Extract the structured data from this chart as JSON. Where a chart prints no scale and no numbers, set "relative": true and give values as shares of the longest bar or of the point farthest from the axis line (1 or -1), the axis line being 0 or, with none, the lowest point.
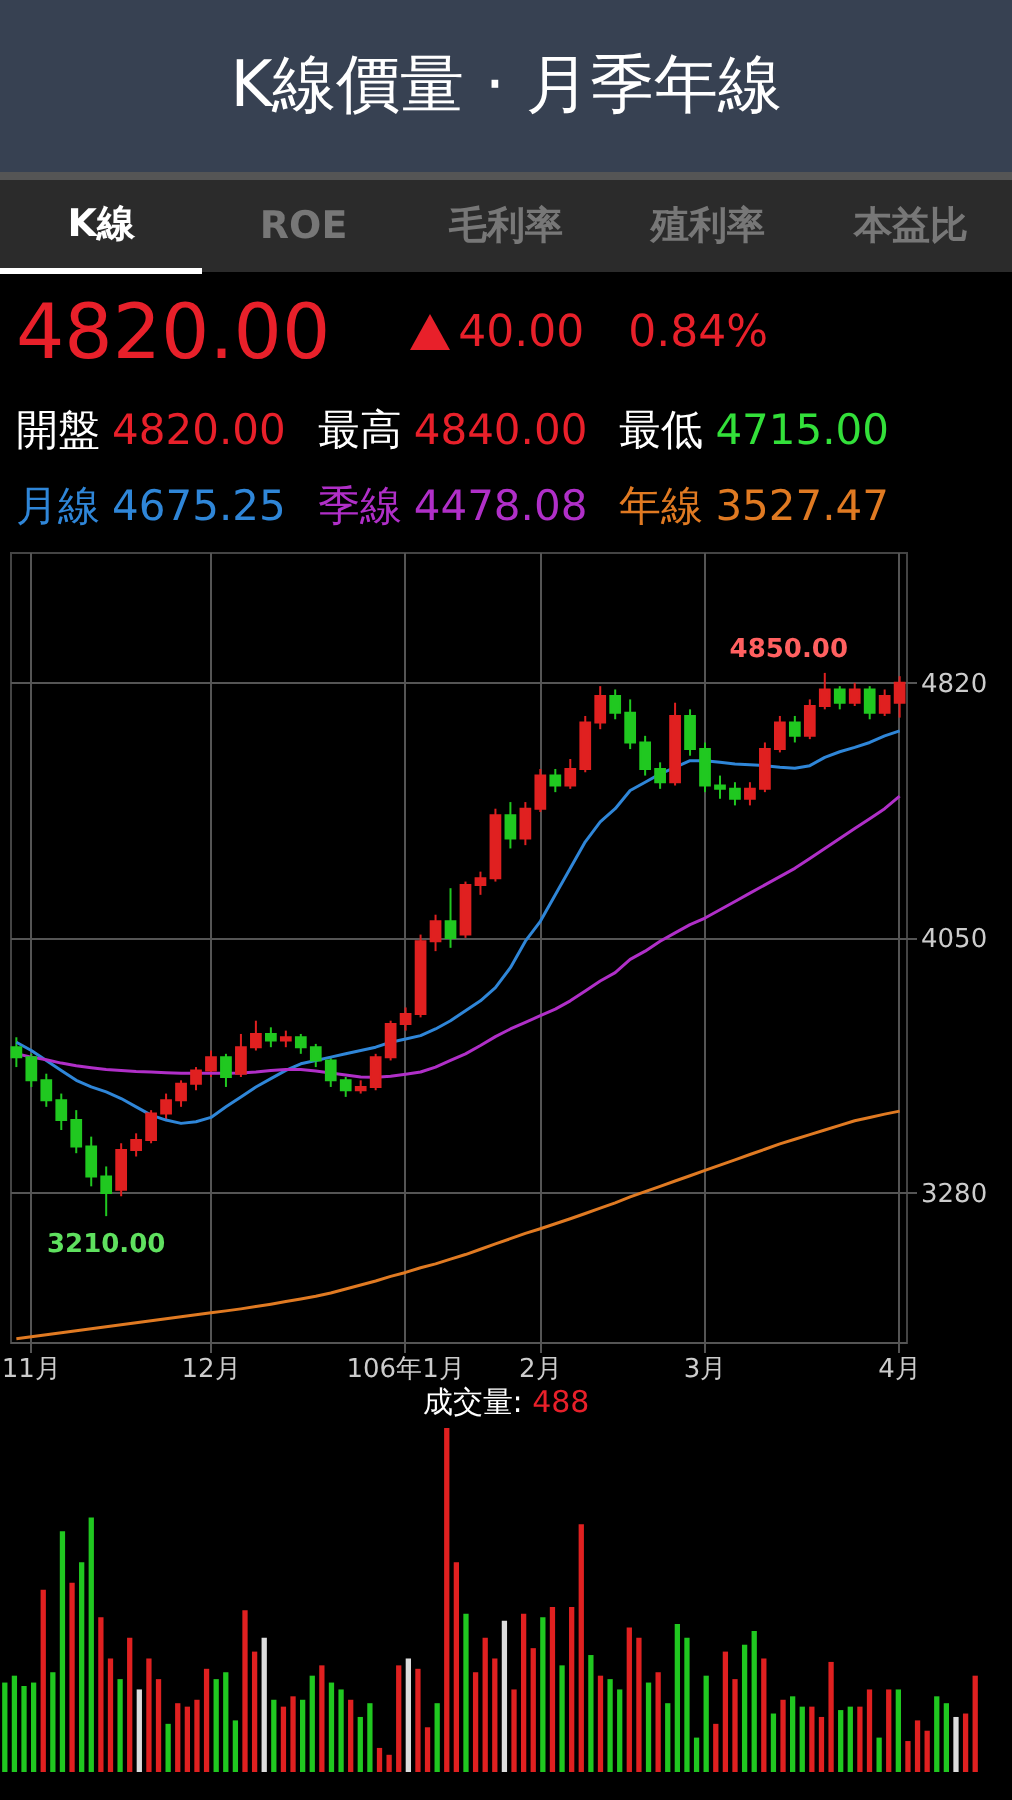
{
  "chart_data": [
    {
      "type": "candlestick",
      "title": "K線價量 · 月季年線",
      "annotations": [
        "K線",
        "ROE",
        "毛利率",
        "殖利率",
        "本益比",
        "4820.00",
        "40.00",
        "0.84%",
        "開盤",
        "4820.00",
        "最高",
        "4840.00",
        "最低",
        "4715.00",
        "4675.25",
        "4478.08",
        "3527.47",
        "4850.00",
        "3210.00"
      ],
      "categories": [
        null,
        "11月",
        null,
        null,
        null,
        null,
        null,
        null,
        null,
        null,
        null,
        null,
        null,
        "12月",
        null,
        null,
        null,
        null,
        null,
        null,
        null,
        null,
        null,
        null,
        null,
        null,
        "106年1月",
        null,
        null,
        null,
        null,
        null,
        null,
        null,
        null,
        "2月",
        null,
        null,
        null,
        null,
        null,
        null,
        null,
        null,
        null,
        null,
        "3月",
        null,
        null,
        null,
        null,
        null,
        null,
        null,
        null,
        null,
        null,
        null,
        null,
        "4月"
      ],
      "ohlc": [
        [
          3720,
          3750,
          3660,
          3690
        ],
        [
          3690,
          3700,
          3600,
          3620
        ],
        [
          3620,
          3640,
          3540,
          3560
        ],
        [
          3560,
          3580,
          3470,
          3500
        ],
        [
          3500,
          3530,
          3400,
          3420
        ],
        [
          3420,
          3450,
          3300,
          3330
        ],
        [
          3330,
          3360,
          3210,
          3280
        ],
        [
          3290,
          3430,
          3270,
          3410
        ],
        [
          3410,
          3460,
          3390,
          3440
        ],
        [
          3440,
          3530,
          3430,
          3520
        ],
        [
          3520,
          3580,
          3500,
          3560
        ],
        [
          3560,
          3620,
          3540,
          3610
        ],
        [
          3610,
          3660,
          3590,
          3650
        ],
        [
          3650,
          3710,
          3630,
          3690
        ],
        [
          3690,
          3700,
          3600,
          3630
        ],
        [
          3640,
          3760,
          3630,
          3720
        ],
        [
          3720,
          3800,
          3710,
          3760
        ],
        [
          3760,
          3780,
          3720,
          3740
        ],
        [
          3740,
          3770,
          3720,
          3750
        ],
        [
          3750,
          3760,
          3700,
          3720
        ],
        [
          3720,
          3730,
          3660,
          3680
        ],
        [
          3680,
          3690,
          3600,
          3620
        ],
        [
          3620,
          3630,
          3570,
          3590
        ],
        [
          3590,
          3620,
          3580,
          3600
        ],
        [
          3600,
          3700,
          3590,
          3690
        ],
        [
          3690,
          3800,
          3680,
          3790
        ],
        [
          3790,
          3840,
          3770,
          3820
        ],
        [
          3820,
          4060,
          3810,
          4040
        ],
        [
          4040,
          4120,
          4010,
          4100
        ],
        [
          4100,
          4200,
          4020,
          4050
        ],
        [
          4060,
          4220,
          4050,
          4210
        ],
        [
          4210,
          4250,
          4180,
          4230
        ],
        [
          4230,
          4440,
          4220,
          4420
        ],
        [
          4420,
          4460,
          4320,
          4350
        ],
        [
          4350,
          4460,
          4330,
          4440
        ],
        [
          4440,
          4560,
          4430,
          4540
        ],
        [
          4540,
          4560,
          4490,
          4510
        ],
        [
          4510,
          4590,
          4500,
          4560
        ],
        [
          4560,
          4720,
          4550,
          4700
        ],
        [
          4700,
          4810,
          4680,
          4780
        ],
        [
          4780,
          4800,
          4710,
          4730
        ],
        [
          4730,
          4770,
          4620,
          4640
        ],
        [
          4640,
          4660,
          4540,
          4560
        ],
        [
          4560,
          4580,
          4500,
          4520
        ],
        [
          4520,
          4760,
          4510,
          4720
        ],
        [
          4720,
          4740,
          4600,
          4620
        ],
        [
          4620,
          4640,
          4490,
          4510
        ],
        [
          4510,
          4540,
          4470,
          4500
        ],
        [
          4500,
          4520,
          4450,
          4470
        ],
        [
          4470,
          4520,
          4450,
          4500
        ],
        [
          4500,
          4640,
          4490,
          4620
        ],
        [
          4620,
          4720,
          4610,
          4700
        ],
        [
          4700,
          4720,
          4640,
          4660
        ],
        [
          4660,
          4770,
          4650,
          4750
        ],
        [
          4750,
          4850,
          4740,
          4800
        ],
        [
          4800,
          4810,
          4740,
          4760
        ],
        [
          4760,
          4820,
          4750,
          4800
        ],
        [
          4800,
          4810,
          4710,
          4730
        ],
        [
          4730,
          4800,
          4720,
          4780
        ],
        [
          4760,
          4840,
          4715,
          4820
        ]
      ],
      "colors": [
        "#20c820",
        "#20c820",
        "#20c820",
        "#20c820",
        "#20c820",
        "#20c820",
        "#20c820",
        "#e02020",
        "#e02020",
        "#e02020",
        "#e02020",
        "#e02020",
        "#e02020",
        "#e02020",
        "#20c820",
        "#e02020",
        "#e02020",
        "#20c820",
        "#e02020",
        "#20c820",
        "#20c820",
        "#20c820",
        "#20c820",
        "#e02020",
        "#e02020",
        "#e02020",
        "#e02020",
        "#e02020",
        "#e02020",
        "#20c820",
        "#e02020",
        "#e02020",
        "#e02020",
        "#20c820",
        "#e02020",
        "#e02020",
        "#20c820",
        "#e02020",
        "#e02020",
        "#e02020",
        "#20c820",
        "#20c820",
        "#20c820",
        "#20c820",
        "#e02020",
        "#20c820",
        "#20c820",
        "#20c820",
        "#20c820",
        "#e02020",
        "#e02020",
        "#e02020",
        "#20c820",
        "#e02020",
        "#e02020",
        "#20c820",
        "#e02020",
        "#20c820",
        "#e02020",
        "#e02020"
      ],
      "series": [
        {
          "type": "line",
          "name": "月線",
          "color": "#2f86d8",
          "values": [
            3735,
            3710,
            3680,
            3650,
            3620,
            3600,
            3585,
            3565,
            3540,
            3515,
            3500,
            3490,
            3495,
            3508,
            3540,
            3570,
            3600,
            3625,
            3650,
            3670,
            3680,
            3690,
            3700,
            3710,
            3720,
            3735,
            3745,
            3755,
            3775,
            3800,
            3830,
            3860,
            3900,
            3960,
            4040,
            4100,
            4180,
            4260,
            4340,
            4400,
            4440,
            4495,
            4520,
            4545,
            4565,
            4585,
            4585,
            4580,
            4575,
            4573,
            4570,
            4565,
            4562,
            4570,
            4595,
            4612,
            4625,
            4640,
            4660,
            4675
          ]
        },
        {
          "type": "line",
          "name": "季線",
          "color": "#b02fc8",
          "values": [
            3700,
            3690,
            3682,
            3672,
            3664,
            3658,
            3653,
            3650,
            3647,
            3645,
            3643,
            3641,
            3641,
            3641,
            3641,
            3642,
            3645,
            3650,
            3653,
            3653,
            3648,
            3642,
            3636,
            3630,
            3629,
            3632,
            3638,
            3645,
            3660,
            3680,
            3700,
            3725,
            3752,
            3775,
            3795,
            3815,
            3835,
            3860,
            3890,
            3920,
            3945,
            3985,
            4010,
            4040,
            4065,
            4090,
            4110,
            4135,
            4160,
            4185,
            4210,
            4235,
            4260,
            4290,
            4320,
            4350,
            4380,
            4410,
            4440,
            4478
          ]
        },
        {
          "type": "line",
          "name": "年線",
          "color": "#e07a22",
          "values": [
            2840,
            2846,
            2852,
            2858,
            2864,
            2870,
            2876,
            2882,
            2888,
            2894,
            2900,
            2906,
            2912,
            2918,
            2924,
            2930,
            2937,
            2944,
            2952,
            2960,
            2968,
            2978,
            2990,
            3002,
            3014,
            3028,
            3040,
            3054,
            3066,
            3080,
            3094,
            3110,
            3126,
            3142,
            3158,
            3172,
            3187,
            3202,
            3218,
            3234,
            3250,
            3268,
            3284,
            3300,
            3316,
            3332,
            3348,
            3364,
            3380,
            3396,
            3412,
            3428,
            3442,
            3456,
            3470,
            3484,
            3498,
            3508,
            3518,
            3527
          ]
        }
      ],
      "ylim": [
        2830,
        5215
      ],
      "yticks": [
        3280,
        4050,
        4820
      ],
      "grid": true
    },
    {
      "type": "bar",
      "relative": true,
      "annotations": [
        "成交量:",
        "488"
      ],
      "categories": [
        null,
        null,
        null,
        null,
        null,
        null,
        null,
        null,
        null,
        null,
        null,
        null,
        null,
        null,
        null,
        null,
        null,
        null,
        null,
        null,
        null,
        null,
        null,
        null,
        null,
        null,
        null,
        null,
        null,
        null,
        null,
        null,
        null,
        null,
        null,
        null,
        null,
        null,
        null,
        null,
        null,
        null,
        null,
        null,
        null,
        null,
        null,
        null,
        null,
        null,
        null,
        null,
        null,
        null,
        null,
        null,
        null,
        null,
        null,
        null,
        null,
        null,
        null,
        null,
        null,
        null,
        null,
        null,
        null,
        null,
        null,
        null,
        null,
        null,
        null,
        null,
        null,
        null,
        null,
        null,
        null,
        null,
        null,
        null,
        null,
        null,
        null,
        null,
        null,
        null,
        null,
        null,
        null,
        null,
        null,
        null,
        null,
        null,
        null,
        null,
        null,
        null
      ],
      "values": [
        0.26,
        0.28,
        0.25,
        0.26,
        0.53,
        0.29,
        0.7,
        0.55,
        0.61,
        0.74,
        0.45,
        0.33,
        0.27,
        0.39,
        0.24,
        0.33,
        0.27,
        0.14,
        0.2,
        0.19,
        0.21,
        0.3,
        0.27,
        0.29,
        0.15,
        0.47,
        0.35,
        0.39,
        0.21,
        0.19,
        0.22,
        0.21,
        0.28,
        0.31,
        0.26,
        0.24,
        0.21,
        0.16,
        0.2,
        0.07,
        0.05,
        0.31,
        0.33,
        0.3,
        0.13,
        0.2,
        1,
        0.61,
        0.46,
        0.29,
        0.39,
        0.33,
        0.44,
        0.24,
        0.46,
        0.36,
        0.45,
        0.48,
        0.31,
        0.48,
        0.72,
        0.34,
        0.28,
        0.27,
        0.24,
        0.42,
        0.39,
        0.26,
        0.29,
        0.2,
        0.43,
        0.39,
        0.1,
        0.28,
        0.14,
        0.35,
        0.27,
        0.37,
        0.41,
        0.33,
        0.17,
        0.21,
        0.22,
        0.19,
        0.19,
        0.16,
        0.32,
        0.18,
        0.19,
        0.19,
        0.24,
        0.1,
        0.24,
        0.24,
        0.09,
        0.15,
        0.12,
        0.22,
        0.2,
        0.16,
        0.17,
        0.28
      ],
      "colors": [
        "#20c820",
        "#20c820",
        "#20c820",
        "#20c820",
        "#e02020",
        "#20c820",
        "#20c820",
        "#e02020",
        "#20c820",
        "#20c820",
        "#e02020",
        "#e02020",
        "#20c820",
        "#e02020",
        "#dddddd",
        "#e02020",
        "#e02020",
        "#20c820",
        "#e02020",
        "#e02020",
        "#e02020",
        "#e02020",
        "#20c820",
        "#20c820",
        "#20c820",
        "#e02020",
        "#e02020",
        "#dddddd",
        "#20c820",
        "#e02020",
        "#e02020",
        "#20c820",
        "#20c820",
        "#e02020",
        "#20c820",
        "#20c820",
        "#e02020",
        "#20c820",
        "#20c820",
        "#e02020",
        "#e02020",
        "#e02020",
        "#dddddd",
        "#e02020",
        "#e02020",
        "#20c820",
        "#e02020",
        "#e02020",
        "#20c820",
        "#e02020",
        "#e02020",
        "#e02020",
        "#dddddd",
        "#e02020",
        "#e02020",
        "#e02020",
        "#20c820",
        "#e02020",
        "#20c820",
        "#e02020",
        "#e02020",
        "#20c820",
        "#e02020",
        "#20c820",
        "#20c820",
        "#e02020",
        "#e02020",
        "#20c820",
        "#e02020",
        "#20c820",
        "#20c820",
        "#20c820",
        "#20c820",
        "#20c820",
        "#e02020",
        "#e02020",
        "#e02020",
        "#20c820",
        "#20c820",
        "#e02020",
        "#20c820",
        "#e02020",
        "#20c820",
        "#20c820",
        "#e02020",
        "#e02020",
        "#e02020",
        "#20c820",
        "#20c820",
        "#e02020",
        "#e02020",
        "#20c820",
        "#e02020",
        "#20c820",
        "#e02020",
        "#e02020",
        "#e02020",
        "#20c820",
        "#20c820",
        "#dddddd",
        "#e02020",
        "#e02020"
      ]
    }
  ]
}
